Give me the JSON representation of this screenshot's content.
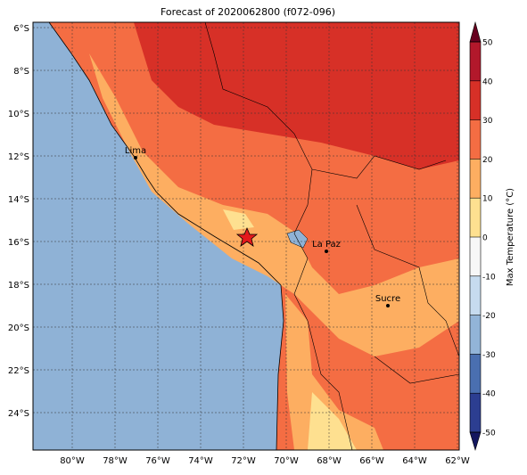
{
  "title": "Forecast of 2020062800 (f072-096)",
  "lon_ticks": [
    {
      "value": -80,
      "label": "80°W"
    },
    {
      "value": -78,
      "label": "78°W"
    },
    {
      "value": -76,
      "label": "76°W"
    },
    {
      "value": -74,
      "label": "74°W"
    },
    {
      "value": -72,
      "label": "72°W"
    },
    {
      "value": -70,
      "label": "70°W"
    },
    {
      "value": -68,
      "label": "68°W"
    },
    {
      "value": -66,
      "label": "66°W"
    },
    {
      "value": -64,
      "label": "64°W"
    },
    {
      "value": -62,
      "label": "62°W"
    }
  ],
  "lat_ticks": [
    {
      "value": -6,
      "label": "6°S"
    },
    {
      "value": -8,
      "label": "8°S"
    },
    {
      "value": -10,
      "label": "10°S"
    },
    {
      "value": -12,
      "label": "12°S"
    },
    {
      "value": -14,
      "label": "14°S"
    },
    {
      "value": -16,
      "label": "16°S"
    },
    {
      "value": -18,
      "label": "18°S"
    },
    {
      "value": -20,
      "label": "20°S"
    },
    {
      "value": -22,
      "label": "22°S"
    },
    {
      "value": -24,
      "label": "24°S"
    }
  ],
  "colorbar": {
    "label": "Max Temperature (°C)",
    "ticks": [
      50,
      40,
      30,
      20,
      10,
      0,
      -10,
      -20,
      -30,
      -40,
      -50
    ],
    "colors": [
      "#67001f",
      "#b2182b",
      "#d73027",
      "#f46d43",
      "#fdae61",
      "#fee090",
      "#f7f7f7",
      "#c6dbef",
      "#92b4d8",
      "#4a6fb0",
      "#2c3e91",
      "#14175f"
    ]
  },
  "cities": [
    "Lima",
    "La Paz",
    "Sucre"
  ]
}
